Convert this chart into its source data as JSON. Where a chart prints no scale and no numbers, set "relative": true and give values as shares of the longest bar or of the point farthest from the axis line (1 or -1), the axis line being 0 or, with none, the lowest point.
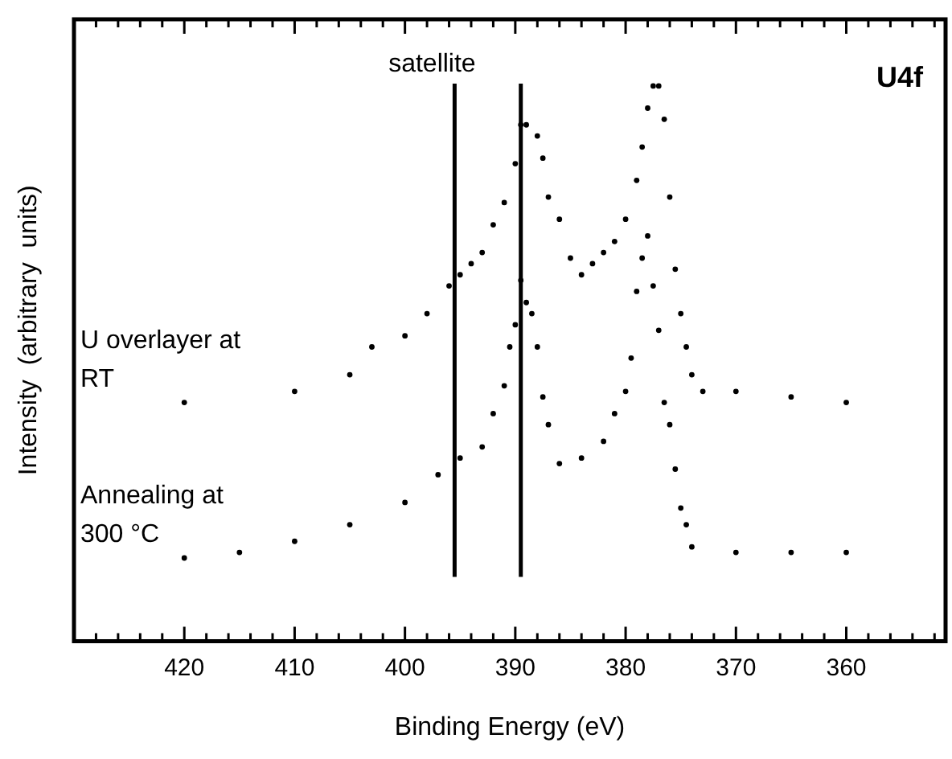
{
  "chart_data": {
    "type": "scatter",
    "xlabel": "Binding Energy (eV)",
    "ylabel": "Intensity  (arbitrary  units)",
    "relative": true,
    "marker": "circle",
    "grid": false,
    "legend": false,
    "xlim": [
      430,
      351
    ],
    "xticks": [
      {
        "value": 428,
        "label": null
      },
      {
        "value": 426,
        "label": null
      },
      {
        "value": 424,
        "label": null
      },
      {
        "value": 422,
        "label": null
      },
      420,
      {
        "value": 418,
        "label": null
      },
      {
        "value": 416,
        "label": null
      },
      {
        "value": 414,
        "label": null
      },
      {
        "value": 412,
        "label": null
      },
      410,
      {
        "value": 408,
        "label": null
      },
      {
        "value": 406,
        "label": null
      },
      {
        "value": 404,
        "label": null
      },
      {
        "value": 402,
        "label": null
      },
      400,
      {
        "value": 398,
        "label": null
      },
      {
        "value": 396,
        "label": null
      },
      {
        "value": 394,
        "label": null
      },
      {
        "value": 392,
        "label": null
      },
      390,
      {
        "value": 388,
        "label": null
      },
      {
        "value": 386,
        "label": null
      },
      {
        "value": 384,
        "label": null
      },
      {
        "value": 382,
        "label": null
      },
      380,
      {
        "value": 378,
        "label": null
      },
      {
        "value": 376,
        "label": null
      },
      {
        "value": 374,
        "label": null
      },
      {
        "value": 372,
        "label": null
      },
      370,
      {
        "value": 368,
        "label": null
      },
      {
        "value": 366,
        "label": null
      },
      {
        "value": 364,
        "label": null
      },
      {
        "value": 362,
        "label": null
      },
      360,
      {
        "value": 358,
        "label": null
      },
      {
        "value": 356,
        "label": null
      },
      {
        "value": 354,
        "label": null
      },
      {
        "value": 352,
        "label": null
      }
    ],
    "series": [
      {
        "name": "U overlayer at RT",
        "color": "#000000",
        "x": [
          420,
          410,
          405,
          403,
          400,
          398,
          396,
          395,
          394,
          393,
          392,
          391,
          390,
          389.5,
          389,
          388,
          387.5,
          387,
          386,
          385,
          384,
          383,
          382,
          381,
          380,
          379,
          378.5,
          378,
          377.5,
          377,
          376.5,
          376,
          375.5,
          375,
          374.5,
          374,
          373,
          370,
          365,
          360
        ],
        "values": [
          0.43,
          0.45,
          0.48,
          0.53,
          0.55,
          0.59,
          0.64,
          0.66,
          0.68,
          0.7,
          0.75,
          0.79,
          0.86,
          0.93,
          0.93,
          0.91,
          0.87,
          0.8,
          0.76,
          0.69,
          0.66,
          0.68,
          0.7,
          0.72,
          0.76,
          0.83,
          0.89,
          0.96,
          1.0,
          1.0,
          0.94,
          0.8,
          0.67,
          0.59,
          0.53,
          0.48,
          0.45,
          0.45,
          0.44,
          0.43
        ]
      },
      {
        "name": "Annealing at 300 °C",
        "color": "#000000",
        "x": [
          420,
          415,
          410,
          405,
          400,
          397,
          395,
          393,
          392,
          391,
          390.5,
          390,
          389.5,
          389,
          388.5,
          388,
          387.5,
          387,
          386,
          384,
          382,
          381,
          380,
          379.5,
          379,
          378.5,
          378,
          377.5,
          377,
          376.5,
          376,
          375.5,
          375,
          374.5,
          374,
          370,
          365,
          360
        ],
        "values": [
          0.15,
          0.16,
          0.18,
          0.21,
          0.25,
          0.3,
          0.33,
          0.35,
          0.41,
          0.46,
          0.53,
          0.57,
          0.65,
          0.61,
          0.59,
          0.53,
          0.44,
          0.39,
          0.32,
          0.33,
          0.36,
          0.41,
          0.45,
          0.51,
          0.63,
          0.69,
          0.73,
          0.64,
          0.56,
          0.43,
          0.39,
          0.31,
          0.24,
          0.21,
          0.17,
          0.16,
          0.16,
          0.16
        ]
      }
    ],
    "ref_lines": [
      {
        "axis": "x",
        "value": 395.5,
        "label": "satellite"
      },
      {
        "axis": "x",
        "value": 389.5
      }
    ],
    "annotations": [
      "U4f"
    ]
  }
}
